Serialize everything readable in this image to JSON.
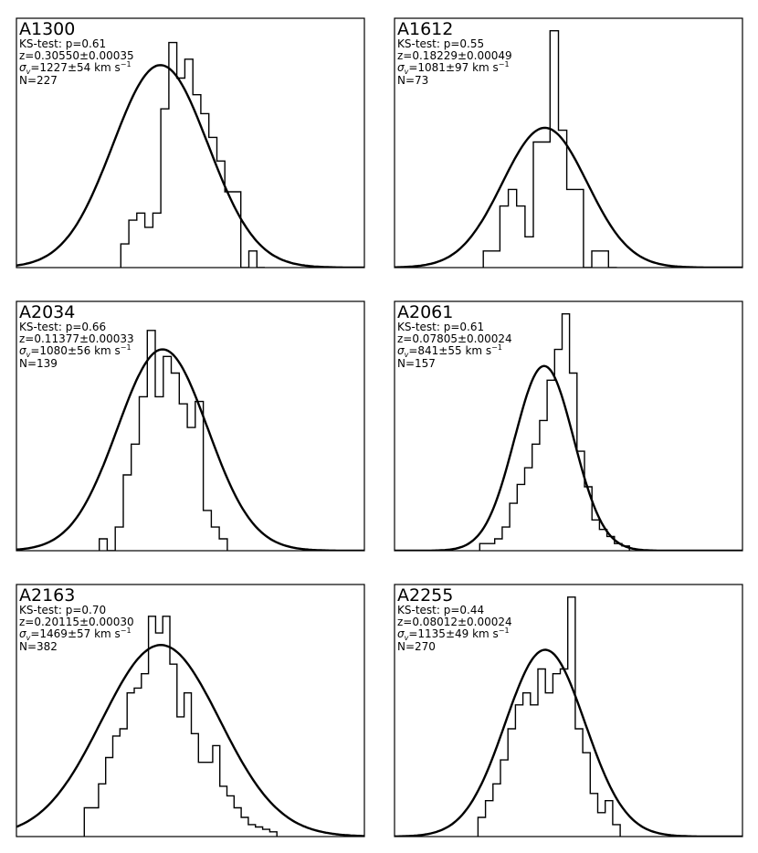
{
  "chart_data": [
    {
      "type": "bar",
      "title": "A1300",
      "ks_test": "KS-test: p=0.61",
      "redshift": "z=0.30550±0.00035",
      "sigma": "=1227±54 km s",
      "sigma_exp": "−1",
      "n": "N=227",
      "fit": {
        "mean": 0.414,
        "std": 0.137,
        "peak": 0.855
      },
      "bins": {
        "start": 0.3,
        "width": 0.023
      },
      "counts": [
        0.1,
        0.2,
        0.23,
        0.17,
        0.23,
        0.67,
        0.95,
        0.8,
        0.88,
        0.73,
        0.65,
        0.55,
        0.45,
        0.32,
        0.32,
        0.0,
        0.07,
        0.0
      ]
    },
    {
      "type": "bar",
      "title": "A1612",
      "ks_test": "KS-test: p=0.55",
      "redshift": "z=0.18229±0.00049",
      "sigma": "=1081±97 km s",
      "sigma_exp": "−1",
      "n": "N=73",
      "fit": {
        "mean": 0.432,
        "std": 0.122,
        "peak": 0.59
      },
      "bins": {
        "start": 0.255,
        "width": 0.024
      },
      "counts": [
        0.07,
        0.07,
        0.26,
        0.33,
        0.26,
        0.13,
        0.53,
        0.53,
        1.0,
        0.58,
        0.33,
        0.33,
        0.0,
        0.07,
        0.07,
        0.0
      ]
    },
    {
      "type": "bar",
      "title": "A2034",
      "ks_test": "KS-test: p=0.66",
      "redshift": "z=0.11377±0.00033",
      "sigma": "=1080±56 km s",
      "sigma_exp": "−1",
      "n": "N=139",
      "fit": {
        "mean": 0.42,
        "std": 0.13,
        "peak": 0.85
      },
      "bins": {
        "start": 0.238,
        "width": 0.023
      },
      "counts": [
        0.05,
        0.0,
        0.1,
        0.32,
        0.45,
        0.65,
        0.93,
        0.65,
        0.82,
        0.75,
        0.62,
        0.52,
        0.63,
        0.17,
        0.1,
        0.05
      ]
    },
    {
      "type": "bar",
      "title": "A2061",
      "ks_test": "KS-test: p=0.61",
      "redshift": "z=0.07805±0.00024",
      "sigma": "=841±55 km s",
      "sigma_exp": "−1",
      "n": "N=157",
      "fit": {
        "mean": 0.43,
        "std": 0.085,
        "peak": 0.78
      },
      "bins": {
        "start": 0.245,
        "width": 0.0215
      },
      "counts": [
        0.03,
        0.03,
        0.05,
        0.1,
        0.2,
        0.28,
        0.35,
        0.45,
        0.55,
        0.72,
        0.85,
        1.0,
        0.75,
        0.42,
        0.27,
        0.13,
        0.09,
        0.06,
        0.03,
        0.02
      ]
    },
    {
      "type": "bar",
      "title": "A2163",
      "ks_test": "KS-test: p=0.70",
      "redshift": "z=0.20115±0.00030",
      "sigma": "=1469±57 km s",
      "sigma_exp": "−1",
      "n": "N=382",
      "fit": {
        "mean": 0.415,
        "std": 0.17,
        "peak": 0.8
      },
      "bins": {
        "start": 0.195,
        "width": 0.0205
      },
      "counts": [
        0.12,
        0.12,
        0.22,
        0.33,
        0.42,
        0.45,
        0.6,
        0.62,
        0.68,
        0.92,
        0.85,
        0.92,
        0.72,
        0.5,
        0.6,
        0.43,
        0.31,
        0.31,
        0.38,
        0.21,
        0.17,
        0.12,
        0.08,
        0.05,
        0.04,
        0.03,
        0.02
      ]
    },
    {
      "type": "bar",
      "title": "A2255",
      "ks_test": "KS-test: p=0.44",
      "redshift": "z=0.08012±0.00024",
      "sigma": "=1135±49 km s",
      "sigma_exp": "−1",
      "n": "N=270",
      "fit": {
        "mean": 0.433,
        "std": 0.115,
        "peak": 0.78
      },
      "bins": {
        "start": 0.24,
        "width": 0.0215
      },
      "counts": [
        0.08,
        0.15,
        0.22,
        0.32,
        0.45,
        0.55,
        0.6,
        0.55,
        0.7,
        0.6,
        0.68,
        0.7,
        1.0,
        0.45,
        0.35,
        0.18,
        0.1,
        0.15,
        0.05
      ]
    }
  ]
}
